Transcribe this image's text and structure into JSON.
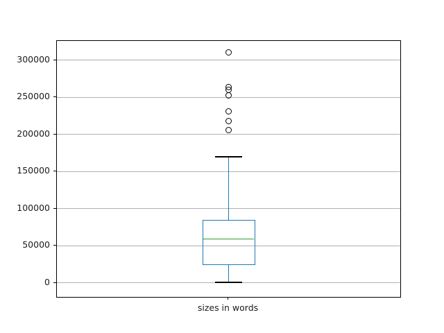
{
  "figure": {
    "background": "#ffffff"
  },
  "chart_data": {
    "type": "boxplot",
    "title": "",
    "xlabel": "",
    "ylabel": "",
    "categories": [
      "sizes in words"
    ],
    "series": [
      {
        "name": "sizes in words",
        "whisker_low": 500,
        "q1": 24000,
        "median": 59000,
        "q3": 85000,
        "whisker_high": 170000,
        "outliers": [
          206000,
          218000,
          231000,
          252000,
          260000,
          264000,
          310000
        ]
      }
    ],
    "yticks": [
      0,
      50000,
      100000,
      150000,
      200000,
      250000,
      300000
    ],
    "ylim": [
      -19000,
      326000
    ],
    "grid": true,
    "legend": false,
    "colors": {
      "box": "#1f77b4",
      "whisker": "#1f77b4",
      "median": "#2ca02c",
      "cap": "#000000",
      "flier_edge": "#000000",
      "grid": "#b0b0b0",
      "spine": "#000000",
      "text": "#1a1a1a"
    }
  }
}
